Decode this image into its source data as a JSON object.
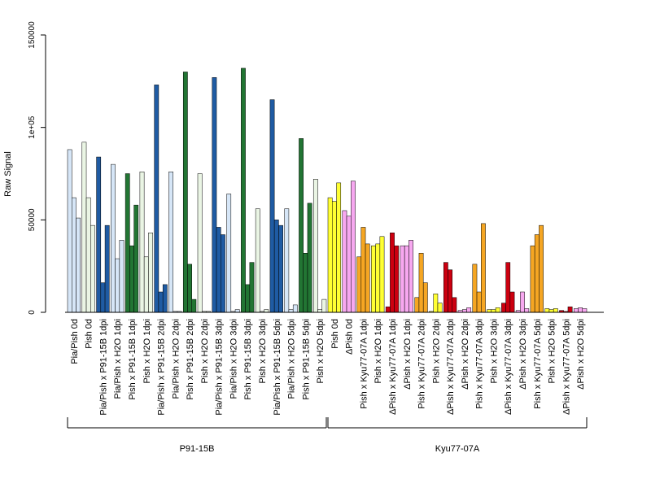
{
  "chart_data": {
    "type": "bar",
    "ylabel": "Raw Signal",
    "ylim": [
      0,
      150000
    ],
    "yticks": [
      0,
      50000,
      100000,
      150000
    ],
    "ytick_labels": [
      "0",
      "50000",
      "1e+05",
      "150000"
    ],
    "grid": false,
    "legend": "none",
    "bar_colors_by_category": [
      "#d6e6f7",
      "#eaf5e4",
      "#1f5ba3",
      "#d6e6f7",
      "#227533",
      "#eaf5e4",
      "#1f5ba3",
      "#d6e6f7",
      "#227533",
      "#eaf5e4",
      "#1f5ba3",
      "#d6e6f7",
      "#227533",
      "#eaf5e4",
      "#1f5ba3",
      "#d6e6f7",
      "#227533",
      "#eaf5e4",
      "#ffff33",
      "#f7a8f0",
      "#f5a623",
      "#ffff33",
      "#cc0010",
      "#f7a8f0",
      "#f5a623",
      "#ffff33",
      "#cc0010",
      "#f7a8f0",
      "#f5a623",
      "#ffff33",
      "#cc0010",
      "#f7a8f0",
      "#f5a623",
      "#ffff33",
      "#cc0010",
      "#f7a8f0"
    ],
    "categories": [
      "Pia/Pish 0d",
      "Pish 0d",
      "Pia/Pish x P91-15B 1dpi",
      "Pia/Pish x H2O 1dpi",
      "Pish x P91-15B 1dpi",
      "Pish x H2O 1dpi",
      "Pia/Pish x P91-15B 2dpi",
      "Pia/Pish x H2O 2dpi",
      "Pish x P91-15B 2dpi",
      "Pish x H2O 2dpi",
      "Pia/Pish x P91-15B 3dpi",
      "Pia/Pish x H2O 3dpi",
      "Pish x P91-15B 3dpi",
      "Pish x H2O 3dpi",
      "Pia/Pish x P91-15B 5dpi",
      "Pia/Pish x H2O 5dpi",
      "Pish x P91-15B 5dpi",
      "Pish x H2O 5dpi",
      "Pish 0d",
      "ΔPish 0d",
      "Pish x Kyu77-07A 1dpi",
      "Pish x H2O 1dpi",
      "ΔPish x Kyu77-07A 1dpi",
      "ΔPish x H2O 1dpi",
      "Pish x Kyu77-07A 2dpi",
      "Pish x H2O 2dpi",
      "ΔPish x Kyu77-07A 2dpi",
      "ΔPish x H2O 2dpi",
      "Pish x Kyu77-07A 3dpi",
      "Pish x H2O 3dpi",
      "ΔPish x Kyu77-07A 3dpi",
      "ΔPish x H2O 3dpi",
      "Pish x Kyu77-07A 5dpi",
      "Pish x H2O 5dpi",
      "ΔPish x Kyu77-07A 5dpi",
      "ΔPish x H2O 5dpi"
    ],
    "values": [
      [
        88000,
        62000,
        51000
      ],
      [
        92000,
        62000,
        47000
      ],
      [
        84000,
        16000,
        47000
      ],
      [
        80000,
        29000,
        39000
      ],
      [
        75000,
        36000,
        58000
      ],
      [
        76000,
        30000,
        43000
      ],
      [
        123000,
        11000,
        15000
      ],
      [
        76000,
        500,
        500
      ],
      [
        130000,
        26000,
        7000
      ],
      [
        75000,
        500,
        500
      ],
      [
        127000,
        46000,
        42000
      ],
      [
        64000,
        500,
        1500
      ],
      [
        132000,
        15000,
        27000
      ],
      [
        56000,
        500,
        1500
      ],
      [
        115000,
        50000,
        47000
      ],
      [
        56000,
        1500,
        4000
      ],
      [
        94000,
        32000,
        59000
      ],
      [
        72000,
        1500,
        7000
      ],
      [
        62000,
        60000,
        70000
      ],
      [
        55000,
        52000,
        71000
      ],
      [
        30000,
        46000,
        37000
      ],
      [
        36000,
        37000,
        41000
      ],
      [
        3000,
        43000,
        36000
      ],
      [
        36000,
        36000,
        39000
      ],
      [
        8000,
        32000,
        16000
      ],
      [
        500,
        10000,
        5000
      ],
      [
        27000,
        23000,
        8000
      ],
      [
        1000,
        1500,
        2500
      ],
      [
        26000,
        11000,
        48000
      ],
      [
        1500,
        1500,
        2500
      ],
      [
        5000,
        27000,
        11000
      ],
      [
        1000,
        11000,
        2000
      ],
      [
        36000,
        42000,
        47000
      ],
      [
        2000,
        1500,
        2000
      ],
      [
        1000,
        500,
        3000
      ],
      [
        2000,
        2500,
        2000
      ]
    ],
    "groups": [
      {
        "label": "P91-15B",
        "start": 0,
        "end": 17
      },
      {
        "label": "Kyu77-07A",
        "start": 18,
        "end": 35
      }
    ]
  }
}
